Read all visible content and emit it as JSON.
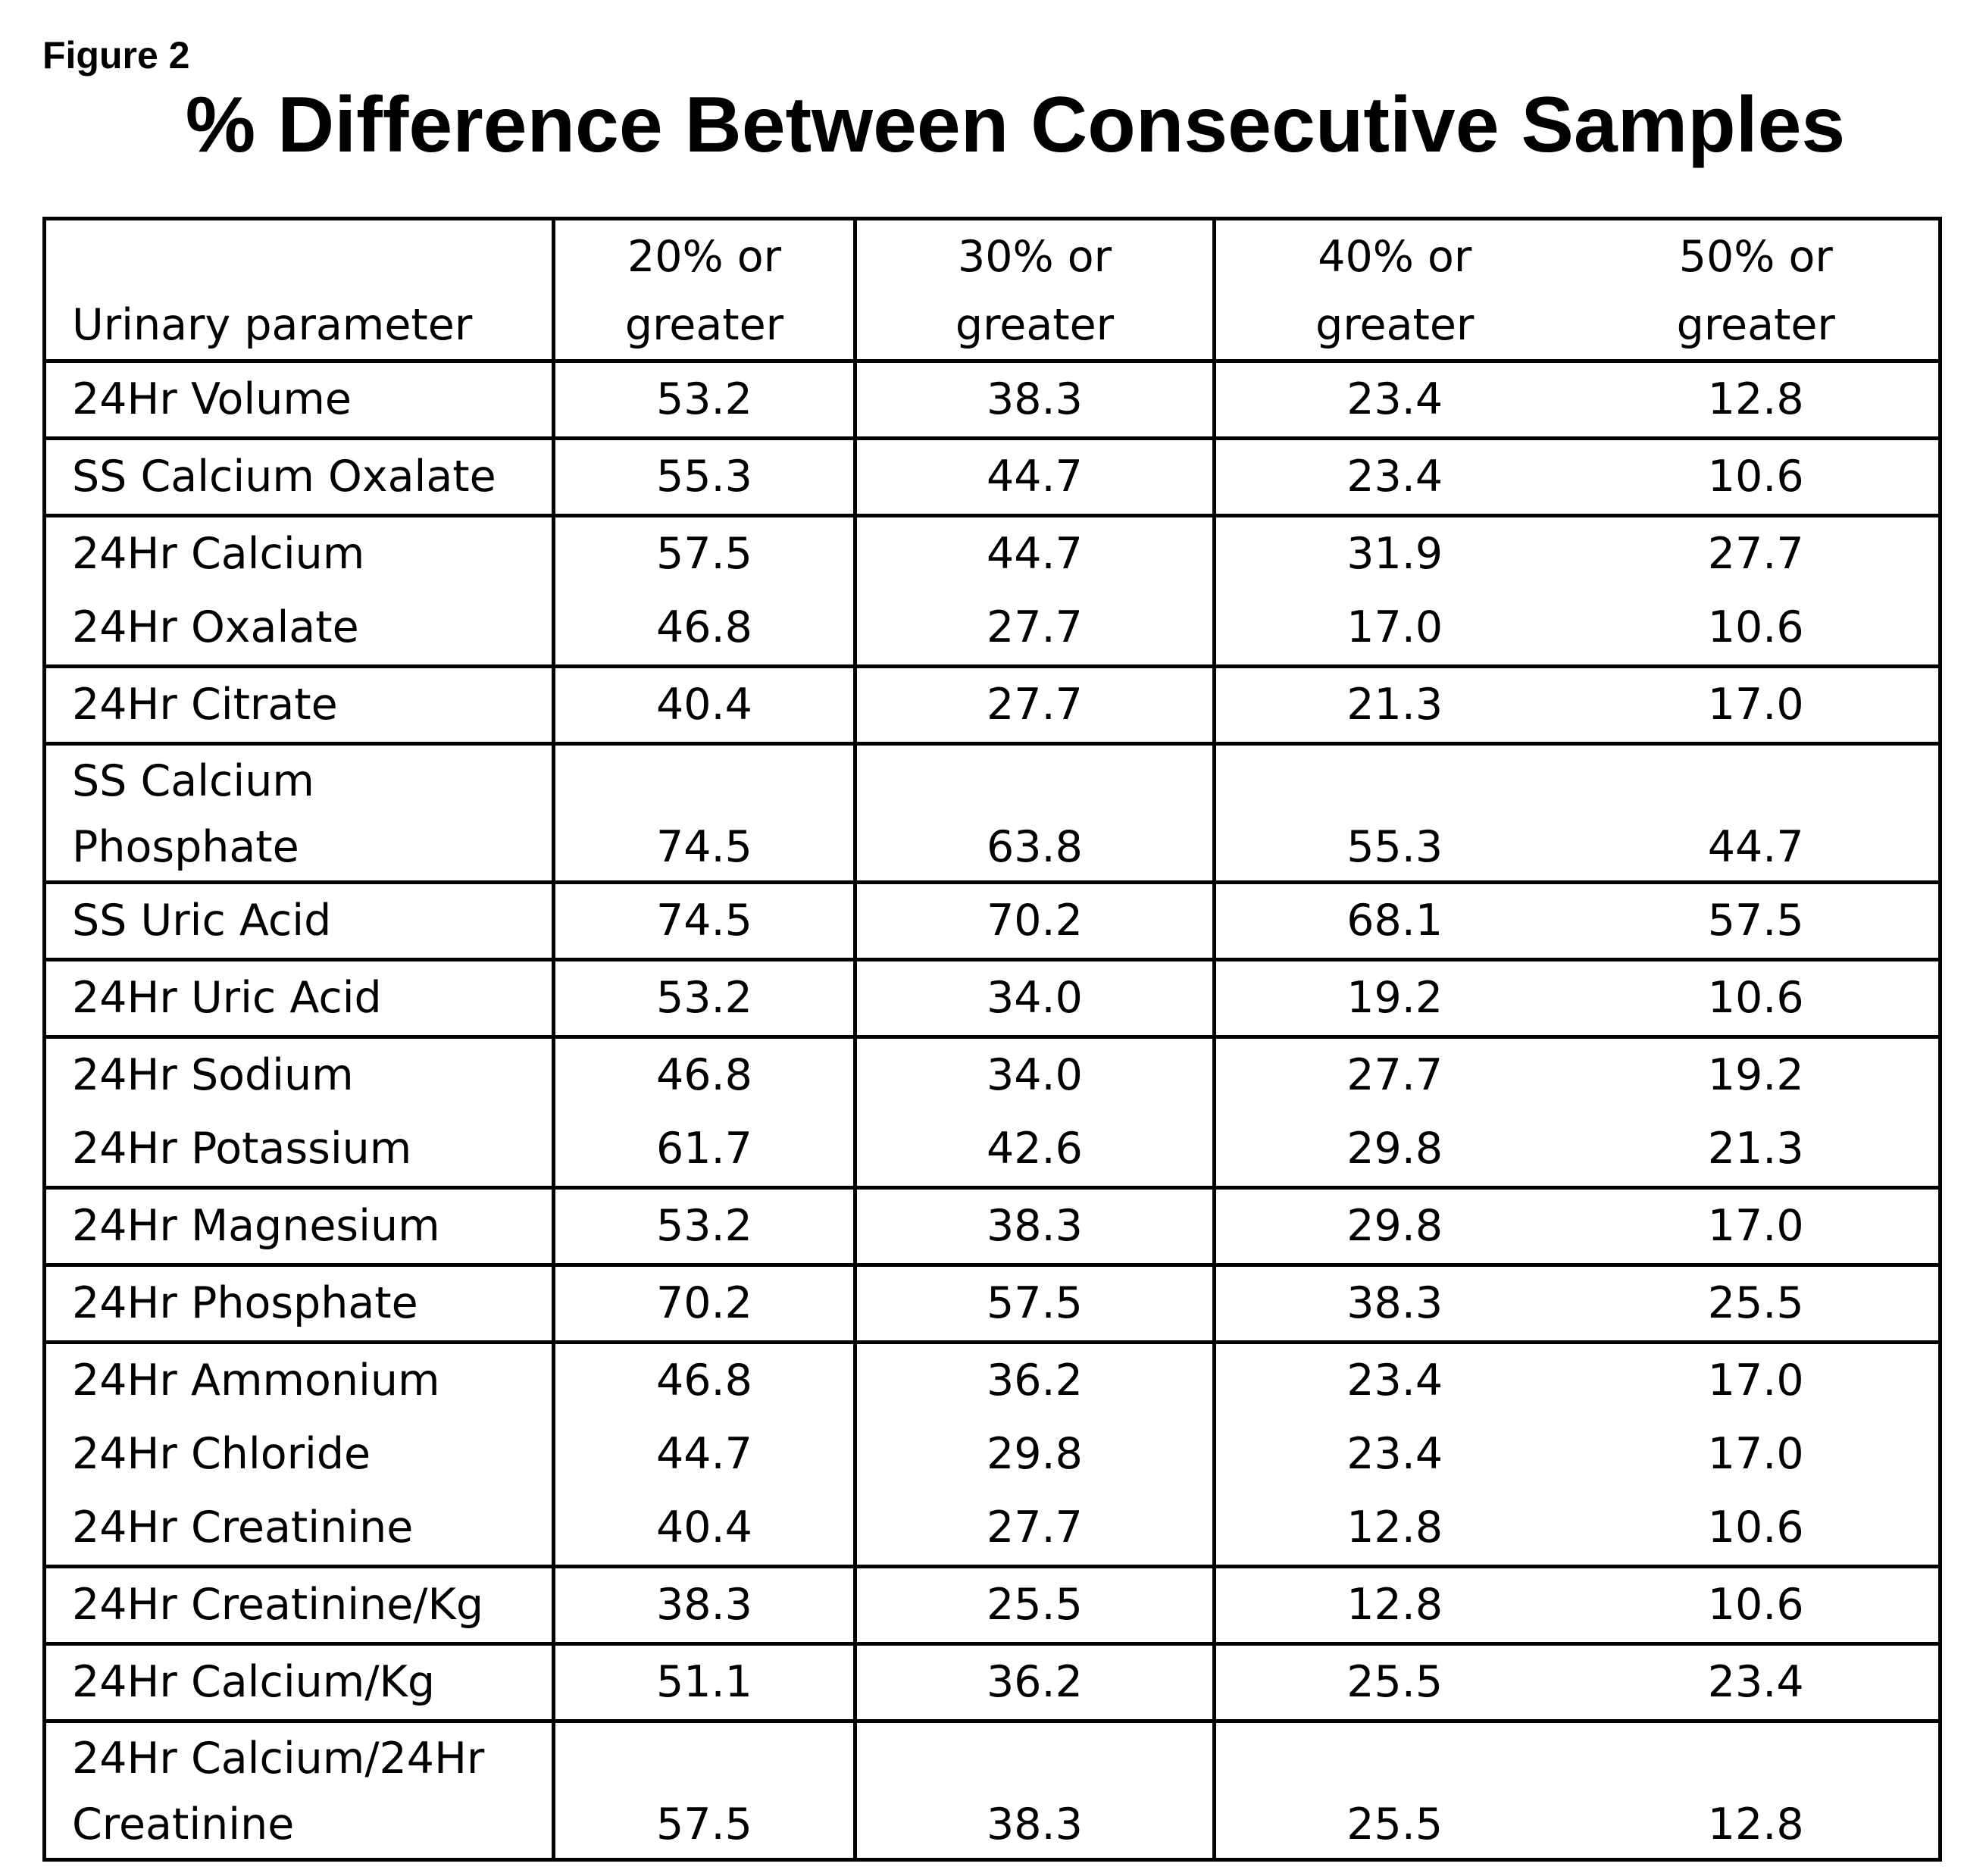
{
  "figure_label": "Figure 2",
  "chart_data": {
    "type": "table",
    "title": "% Difference Between Consecutive Samples",
    "columns": [
      [
        "Urinary parameter"
      ],
      [
        "20% or",
        "greater"
      ],
      [
        "30% or",
        "greater"
      ],
      [
        "40% or",
        "greater"
      ],
      [
        "50% or",
        "greater"
      ]
    ],
    "rows": [
      {
        "name": [
          "24Hr Volume"
        ],
        "values": [
          "53.2",
          "38.3",
          "23.4",
          "12.8"
        ],
        "group_end": true
      },
      {
        "name": [
          "SS Calcium Oxalate"
        ],
        "values": [
          "55.3",
          "44.7",
          "23.4",
          "10.6"
        ],
        "group_end": true
      },
      {
        "name": [
          "24Hr Calcium"
        ],
        "values": [
          "57.5",
          "44.7",
          "31.9",
          "27.7"
        ],
        "group_end": false
      },
      {
        "name": [
          "24Hr Oxalate"
        ],
        "values": [
          "46.8",
          "27.7",
          "17.0",
          "10.6"
        ],
        "group_end": true
      },
      {
        "name": [
          "24Hr Citrate"
        ],
        "values": [
          "40.4",
          "27.7",
          "21.3",
          "17.0"
        ],
        "group_end": true
      },
      {
        "name": [
          "SS Calcium",
          "Phosphate"
        ],
        "values": [
          "74.5",
          "63.8",
          "55.3",
          "44.7"
        ],
        "group_end": true
      },
      {
        "name": [
          "SS Uric Acid"
        ],
        "values": [
          "74.5",
          "70.2",
          "68.1",
          "57.5"
        ],
        "group_end": true
      },
      {
        "name": [
          "24Hr Uric Acid"
        ],
        "values": [
          "53.2",
          "34.0",
          "19.2",
          "10.6"
        ],
        "group_end": true
      },
      {
        "name": [
          "24Hr Sodium"
        ],
        "values": [
          "46.8",
          "34.0",
          "27.7",
          "19.2"
        ],
        "group_end": false
      },
      {
        "name": [
          "24Hr Potassium"
        ],
        "values": [
          "61.7",
          "42.6",
          "29.8",
          "21.3"
        ],
        "group_end": true
      },
      {
        "name": [
          "24Hr Magnesium"
        ],
        "values": [
          "53.2",
          "38.3",
          "29.8",
          "17.0"
        ],
        "group_end": true
      },
      {
        "name": [
          "24Hr Phosphate"
        ],
        "values": [
          "70.2",
          "57.5",
          "38.3",
          "25.5"
        ],
        "group_end": true
      },
      {
        "name": [
          "24Hr Ammonium"
        ],
        "values": [
          "46.8",
          "36.2",
          "23.4",
          "17.0"
        ],
        "group_end": false
      },
      {
        "name": [
          "24Hr Chloride"
        ],
        "values": [
          "44.7",
          "29.8",
          "23.4",
          "17.0"
        ],
        "group_end": false
      },
      {
        "name": [
          "24Hr Creatinine"
        ],
        "values": [
          "40.4",
          "27.7",
          "12.8",
          "10.6"
        ],
        "group_end": true
      },
      {
        "name": [
          "24Hr Creatinine/Kg"
        ],
        "values": [
          "38.3",
          "25.5",
          "12.8",
          "10.6"
        ],
        "group_end": true
      },
      {
        "name": [
          "24Hr Calcium/Kg"
        ],
        "values": [
          "51.1",
          "36.2",
          "25.5",
          "23.4"
        ],
        "group_end": true
      },
      {
        "name": [
          "24Hr Calcium/24Hr",
          "Creatinine"
        ],
        "values": [
          "57.5",
          "38.3",
          "25.5",
          "12.8"
        ],
        "group_end": true
      }
    ]
  }
}
